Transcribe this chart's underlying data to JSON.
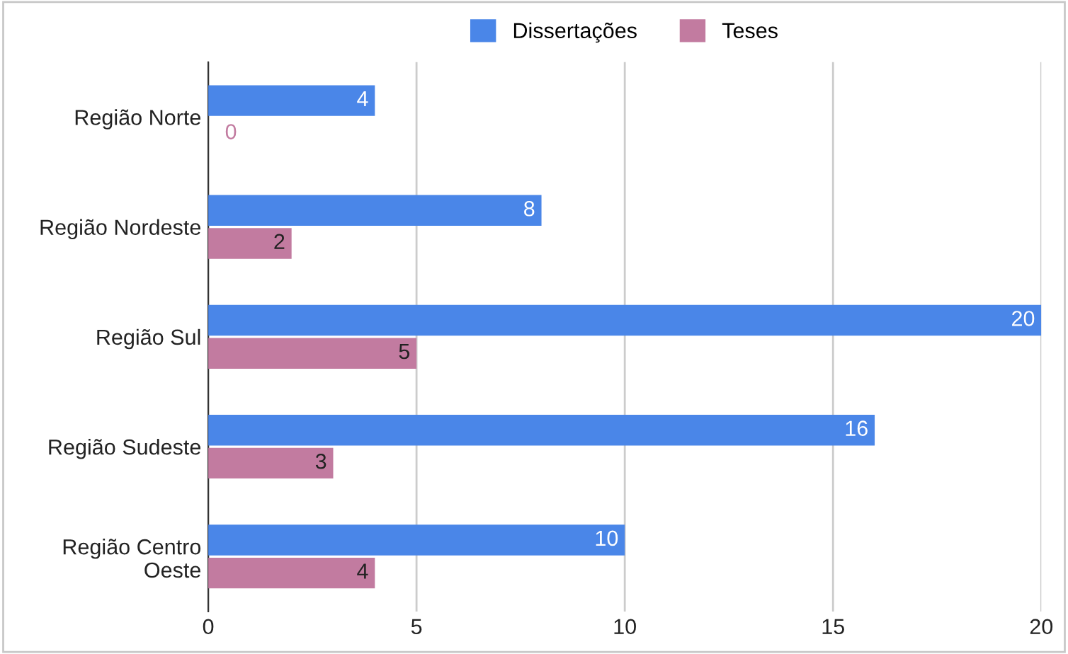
{
  "chart_data": {
    "type": "bar",
    "orientation": "horizontal",
    "categories": [
      "Região Norte",
      "Região Nordeste",
      "Região Sul",
      "Região Sudeste",
      "Região Centro\nOeste"
    ],
    "series": [
      {
        "name": "Dissertações",
        "color": "#4a86e8",
        "values": [
          4,
          8,
          20,
          16,
          10
        ]
      },
      {
        "name": "Teses",
        "color": "#c27ba0",
        "values": [
          0,
          2,
          5,
          3,
          4
        ]
      }
    ],
    "xlim": [
      0,
      20
    ],
    "xticks": [
      0,
      5,
      10,
      15,
      20
    ],
    "grid": "x",
    "legend": "top",
    "data_labels": true
  }
}
